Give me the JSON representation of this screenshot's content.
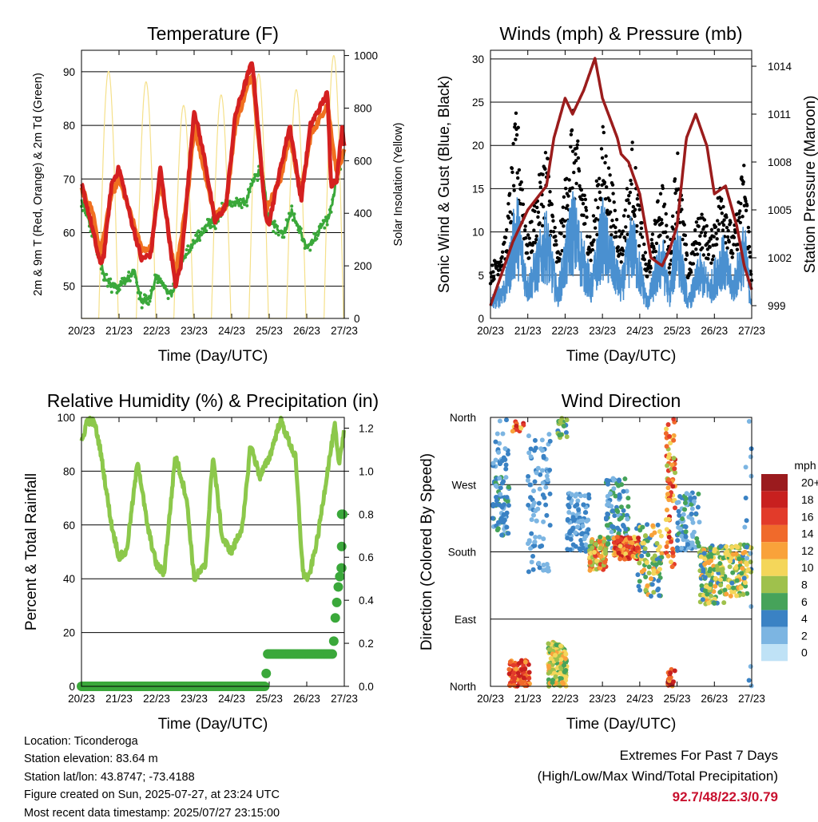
{
  "x_ticks": [
    "20/23",
    "21/23",
    "22/23",
    "23/23",
    "24/23",
    "25/23",
    "26/23",
    "27/23"
  ],
  "colors": {
    "red": "#d42020",
    "orange": "#f07020",
    "green": "#3aa83a",
    "yellow": "#f5e08a",
    "blue": "#4a90d0",
    "black": "#000000",
    "maroon": "#9b1c1c",
    "rh_line": "#8cc84b",
    "precip": "#3aa83a",
    "extremes": "#c8102e"
  },
  "chart_data": [
    {
      "type": "line",
      "title": "Temperature (F)",
      "xlabel": "Time (Day/UTC)",
      "ylabel": "2m & 9m T (Red, Orange) & 2m Td (Green)",
      "y2label": "Solar Insolation (Yellow)",
      "ylim": [
        44,
        94
      ],
      "y_ticks": [
        50,
        60,
        70,
        80,
        90
      ],
      "y2lim": [
        0,
        1020
      ],
      "y2_ticks": [
        0,
        200,
        400,
        600,
        800,
        1000
      ],
      "grid": true,
      "series": [
        {
          "kind": "T2m",
          "x": [
            0,
            0.25,
            0.5,
            0.6,
            0.8,
            1.0,
            1.3,
            1.6,
            1.85,
            2.1,
            2.5,
            2.65,
            2.85,
            3.0,
            3.3,
            3.55,
            3.85,
            4.1,
            4.55,
            4.7,
            4.9,
            5.0,
            5.3,
            5.55,
            5.85,
            6.1,
            6.55,
            6.65,
            6.8,
            6.95,
            7.0
          ],
          "y": [
            69,
            62,
            54,
            56,
            69,
            72,
            63,
            55,
            56,
            72,
            50,
            54,
            70,
            83,
            73,
            62,
            65,
            82,
            92,
            80,
            63,
            62,
            72,
            80,
            66,
            80,
            86,
            69,
            70,
            80,
            76
          ]
        },
        {
          "kind": "T9m",
          "x": [
            0,
            0.3,
            0.5,
            0.8,
            1.0,
            1.6,
            1.85,
            2.1,
            2.5,
            2.85,
            3.0,
            3.55,
            3.85,
            4.1,
            4.55,
            4.9,
            5.3,
            5.55,
            5.85,
            6.1,
            6.55,
            6.8,
            7.0
          ],
          "y": [
            68,
            64,
            56,
            67,
            70,
            57,
            57,
            70,
            52,
            68,
            80,
            63,
            65,
            80,
            90,
            64,
            70,
            78,
            67,
            78,
            84,
            71,
            75
          ]
        },
        {
          "kind": "Td2m",
          "x": [
            0,
            0.3,
            0.5,
            0.6,
            0.8,
            1.0,
            1.4,
            1.6,
            1.85,
            2.0,
            2.4,
            2.6,
            2.8,
            3.0,
            3.4,
            3.6,
            3.85,
            4.0,
            4.4,
            4.6,
            4.8,
            5.0,
            5.4,
            5.6,
            6.0,
            6.3,
            6.6,
            6.8,
            7.0
          ],
          "y": [
            66,
            60,
            55,
            52,
            50,
            50,
            53,
            47,
            48,
            52,
            48,
            54,
            56,
            58,
            62,
            62,
            66,
            65,
            66,
            70,
            72,
            62,
            60,
            64,
            57,
            60,
            63,
            70,
            75
          ]
        },
        {
          "kind": "Solar",
          "peaks": [
            0.72,
            1.72,
            2.72,
            3.72,
            4.72,
            5.72,
            6.72
          ],
          "heights": [
            940,
            900,
            810,
            850,
            930,
            870,
            1000
          ]
        }
      ]
    },
    {
      "type": "scatter",
      "title": "Winds (mph) & Pressure (mb)",
      "xlabel": "Time (Day/UTC)",
      "ylabel": "Sonic Wind & Gust (Blue, Black)",
      "y2label": "Station Pressure (Maroon)",
      "ylim": [
        0,
        31
      ],
      "y_ticks": [
        0,
        5,
        10,
        15,
        20,
        25,
        30
      ],
      "y2lim": [
        998.2,
        1015
      ],
      "y2_ticks": [
        999,
        1002,
        1005,
        1008,
        1011,
        1014
      ],
      "grid": true,
      "wind_hump": {
        "x": [
          0,
          0.4,
          0.7,
          1.0,
          1.5,
          1.8,
          2.2,
          2.7,
          3.0,
          3.5,
          3.8,
          4.2,
          4.6,
          4.8,
          5.0,
          5.3,
          5.6,
          5.9,
          6.2,
          6.5,
          6.8,
          7.0
        ],
        "y": [
          2,
          4,
          12,
          4,
          10,
          3,
          12,
          4,
          11,
          4,
          10,
          2,
          8,
          3,
          10,
          2,
          6,
          4,
          8,
          4,
          9,
          2
        ]
      },
      "pressure": {
        "x": [
          0,
          0.3,
          0.6,
          1.0,
          1.5,
          1.7,
          2.0,
          2.2,
          2.5,
          2.8,
          3.0,
          3.4,
          3.5,
          3.7,
          4.0,
          4.3,
          4.6,
          4.8,
          5.0,
          5.25,
          5.5,
          5.8,
          6.0,
          6.3,
          6.6,
          6.8,
          7.0
        ],
        "y": [
          999,
          1001,
          1003,
          1005,
          1006.5,
          1009.5,
          1012,
          1011,
          1012.5,
          1014.5,
          1012,
          1009.5,
          1008.5,
          1008,
          1006,
          1002,
          1001.5,
          1002.5,
          1004,
          1009.5,
          1011,
          1009,
          1006,
          1006.5,
          1004,
          1001.5,
          1000
        ]
      }
    },
    {
      "type": "line",
      "title": "Relative Humidity (%) & Precipitation (in)",
      "xlabel": "Time (Day/UTC)",
      "ylabel": "Percent & Total Rainfall",
      "ylim": [
        0,
        100
      ],
      "y_ticks": [
        0,
        20,
        40,
        60,
        80,
        100
      ],
      "y2lim": [
        0,
        1.25
      ],
      "y2_ticks": [
        0.0,
        0.2,
        0.4,
        0.6,
        0.8,
        1.0,
        1.2
      ],
      "grid": true,
      "series": [
        {
          "kind": "RH",
          "x": [
            0,
            0.15,
            0.35,
            0.5,
            0.8,
            1.0,
            1.2,
            1.5,
            1.75,
            2.0,
            2.2,
            2.5,
            2.8,
            3.0,
            3.3,
            3.5,
            3.75,
            4.0,
            4.3,
            4.5,
            4.75,
            5.0,
            5.3,
            5.7,
            5.9,
            6.05,
            6.3,
            6.55,
            6.75,
            6.85,
            7.0
          ],
          "y": [
            90,
            99,
            98,
            88,
            60,
            48,
            50,
            84,
            60,
            45,
            42,
            86,
            70,
            40,
            45,
            86,
            55,
            50,
            60,
            90,
            78,
            85,
            99,
            85,
            42,
            40,
            56,
            80,
            97,
            82,
            96
          ]
        },
        {
          "kind": "Precip",
          "x": [
            0,
            4.9,
            4.95,
            6.7,
            6.75,
            6.85,
            6.92,
            6.95,
            7.0
          ],
          "y": [
            0.0,
            0.0,
            0.15,
            0.15,
            0.3,
            0.48,
            0.55,
            0.8,
            0.8
          ]
        }
      ]
    },
    {
      "type": "scatter",
      "title": "Wind Direction",
      "xlabel": "Time (Day/UTC)",
      "ylabel": "Direction (Colored By Speed)",
      "y_labels": [
        "North",
        "East",
        "South",
        "West",
        "North"
      ],
      "ylim": [
        0,
        360
      ],
      "grid": true,
      "colorbar": {
        "title": "mph",
        "labels": [
          "20+",
          "18",
          "16",
          "14",
          "12",
          "10",
          "8",
          "6",
          "4",
          "2",
          "0"
        ],
        "colors": [
          "#9b1b1e",
          "#c8201f",
          "#e23b2a",
          "#f06a2b",
          "#f9a23a",
          "#f4d65a",
          "#9fc14c",
          "#46a35a",
          "#3a82c4",
          "#7cb5e2",
          "#bfe2f6"
        ]
      },
      "clusters": [
        {
          "x0": 0.05,
          "x1": 0.5,
          "dmin": 200,
          "dmax": 280,
          "smin": 2,
          "smax": 6,
          "n": 70
        },
        {
          "x0": 0.05,
          "x1": 0.5,
          "dmin": 290,
          "dmax": 360,
          "smin": 1,
          "smax": 5,
          "n": 25
        },
        {
          "x0": 0.5,
          "x1": 1.05,
          "dmin": 0,
          "dmax": 35,
          "smin": 12,
          "smax": 19,
          "n": 80
        },
        {
          "x0": 0.55,
          "x1": 0.9,
          "dmin": 340,
          "dmax": 360,
          "smin": 10,
          "smax": 18,
          "n": 12
        },
        {
          "x0": 1.0,
          "x1": 1.6,
          "dmin": 150,
          "dmax": 340,
          "smin": 1,
          "smax": 5,
          "n": 90
        },
        {
          "x0": 1.55,
          "x1": 2.05,
          "dmin": 0,
          "dmax": 60,
          "smin": 5,
          "smax": 12,
          "n": 140
        },
        {
          "x0": 1.8,
          "x1": 2.05,
          "dmin": 330,
          "dmax": 360,
          "smin": 4,
          "smax": 9,
          "n": 20
        },
        {
          "x0": 2.05,
          "x1": 2.65,
          "dmin": 180,
          "dmax": 260,
          "smin": 1,
          "smax": 5,
          "n": 90
        },
        {
          "x0": 2.65,
          "x1": 3.1,
          "dmin": 155,
          "dmax": 200,
          "smin": 6,
          "smax": 16,
          "n": 110
        },
        {
          "x0": 3.1,
          "x1": 3.7,
          "dmin": 180,
          "dmax": 280,
          "smin": 2,
          "smax": 7,
          "n": 100
        },
        {
          "x0": 3.3,
          "x1": 4.0,
          "dmin": 170,
          "dmax": 200,
          "smin": 10,
          "smax": 19,
          "n": 130
        },
        {
          "x0": 3.9,
          "x1": 4.6,
          "dmin": 120,
          "dmax": 220,
          "smin": 3,
          "smax": 12,
          "n": 90
        },
        {
          "x0": 4.7,
          "x1": 4.95,
          "dmin": 160,
          "dmax": 360,
          "smin": 8,
          "smax": 18,
          "n": 70
        },
        {
          "x0": 4.75,
          "x1": 4.95,
          "dmin": 0,
          "dmax": 25,
          "smin": 12,
          "smax": 20,
          "n": 20
        },
        {
          "x0": 5.0,
          "x1": 5.6,
          "dmin": 180,
          "dmax": 260,
          "smin": 1,
          "smax": 6,
          "n": 90
        },
        {
          "x0": 5.6,
          "x1": 6.3,
          "dmin": 110,
          "dmax": 190,
          "smin": 3,
          "smax": 12,
          "n": 150
        },
        {
          "x0": 6.3,
          "x1": 7.0,
          "dmin": 120,
          "dmax": 190,
          "smin": 4,
          "smax": 12,
          "n": 100
        },
        {
          "x0": 6.8,
          "x1": 7.0,
          "dmin": 0,
          "dmax": 360,
          "smin": 1,
          "smax": 5,
          "n": 15
        }
      ]
    }
  ],
  "station_info": [
    "Location: Ticonderoga",
    "Station elevation: 83.64 m",
    "Station lat/lon: 43.8747; -73.4188",
    "Figure created on Sun, 2025-07-27, at 23:24 UTC",
    "Most recent data timestamp: 2025/07/27 23:15:00"
  ],
  "extremes": {
    "title": "Extremes For Past 7 Days",
    "subtitle": "(High/Low/Max Wind/Total Precipitation)",
    "value": "92.7/48/22.3/0.79"
  }
}
